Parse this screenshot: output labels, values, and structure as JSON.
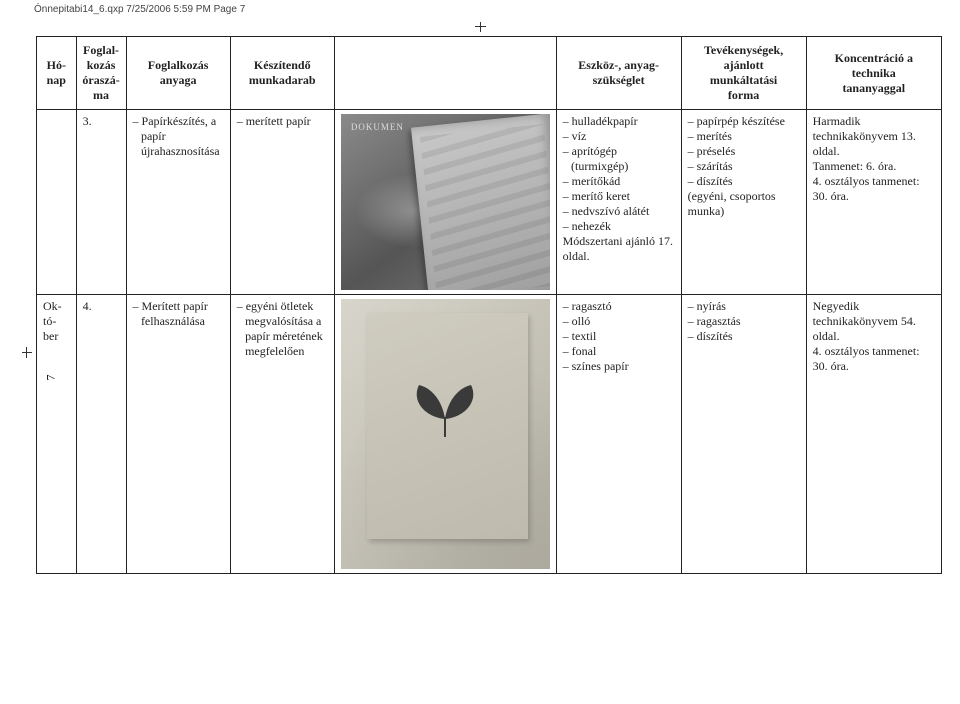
{
  "header_line": "Ónnepitabi14_6.qxp  7/25/2006  5:59 PM  Page 7",
  "page_number": "7",
  "columns": {
    "month": "Hó-\nnap",
    "num": "Foglal-\nkozás\nóraszá-\nma",
    "anyaga": "Foglalkozás\nanyaga",
    "keszit": "Készítendő\nmunkadarab",
    "eszkoz": "Eszköz-, anyag-\nszükséglet",
    "tev": "Tevékenységek,\najánlott\nmunkáltatási\nforma",
    "konc": "Koncentráció a\ntechnika\ntananyaggal"
  },
  "rows": [
    {
      "month": "",
      "num": "3.",
      "anyaga_items": [
        "Papírkészítés, a papír újrahasznosítása"
      ],
      "keszit_items": [
        "merített papír"
      ],
      "photo_tag": "DOKUMEN",
      "eszkoz_items": [
        "hulladékpapír",
        "víz",
        "aprítógép (turmixgép)",
        "merítőkád",
        "merítő keret",
        "nedvszívó alátét",
        "nehezék"
      ],
      "eszkoz_tail": "Módszertani ajánló 17. oldal.",
      "tev_items": [
        "papírpép készítése",
        "merítés",
        "préselés",
        "szárítás",
        "díszítés"
      ],
      "tev_tail": "(egyéni, csoportos munka)",
      "konc_text": "Harmadik technikakönyvem 13. oldal.\nTanmenet: 6. óra.\n4. osztályos tanmenet: 30. óra."
    },
    {
      "month": "Ok-\ntó-\nber",
      "num": "4.",
      "anyaga_items": [
        "Merített papír felhasználása"
      ],
      "keszit_items": [
        "egyéni ötletek megvalósítása a papír méretének megfelelően"
      ],
      "eszkoz_items": [
        "ragasztó",
        "olló",
        "textil",
        "fonal",
        "színes papír"
      ],
      "tev_items": [
        "nyírás",
        "ragasztás",
        "díszítés"
      ],
      "konc_text": "Negyedik technikakönyvem  54. oldal.\n4. osztályos tanmenet: 30. óra."
    }
  ]
}
